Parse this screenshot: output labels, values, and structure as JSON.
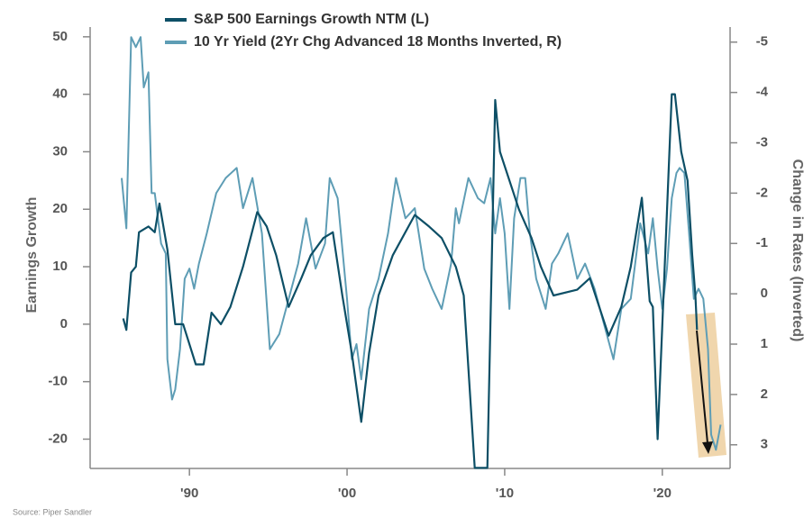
{
  "chart_data": {
    "type": "line",
    "y_label": "Earnings Growth",
    "y2_label": "Change in Rates (Inverted)",
    "source": "Source: Piper Sandler",
    "xlim": [
      1983.7,
      2024.3
    ],
    "xticks": [
      {
        "value": 1990,
        "label": "'90"
      },
      {
        "value": 2000,
        "label": "'00"
      },
      {
        "value": 2010,
        "label": "'10"
      },
      {
        "value": 2020,
        "label": "'20"
      }
    ],
    "ylim": [
      -25.1,
      51.7
    ],
    "yticks": [
      -20,
      -10,
      0,
      10,
      20,
      30,
      40,
      50
    ],
    "y2lim": [
      3.47,
      -5.3
    ],
    "y2ticks": [
      -5,
      -4,
      -3,
      -2,
      -1,
      0,
      1,
      2,
      3
    ],
    "series": [
      {
        "name": "S&P 500 Earnings Growth NTM (L)",
        "color": "#0d4f66",
        "axis": "y",
        "x": [
          1985.8,
          1986.0,
          1986.3,
          1986.6,
          1986.8,
          1987.4,
          1987.8,
          1988.1,
          1988.6,
          1989.1,
          1989.6,
          1990.4,
          1990.9,
          1991.4,
          1992.0,
          1992.6,
          1993.4,
          1994.3,
          1994.9,
          1995.5,
          1996.3,
          1997.1,
          1997.7,
          1998.5,
          1999.1,
          1999.7,
          2000.3,
          2000.9,
          2001.4,
          2002.0,
          2002.9,
          2004.3,
          2005.2,
          2006.0,
          2006.9,
          2007.4,
          2008.1,
          2008.9,
          2009.4,
          2009.7,
          2010.9,
          2011.7,
          2012.3,
          2013.1,
          2014.6,
          2015.4,
          2016.6,
          2017.4,
          2018.0,
          2018.7,
          2019.2,
          2019.4,
          2019.7,
          2020.6,
          2020.8,
          2021.2,
          2021.6,
          2021.9,
          2022.1,
          2022.2
        ],
        "values": [
          1,
          -1,
          9,
          10,
          16,
          17,
          16,
          21,
          13,
          0,
          0,
          -7,
          -7,
          2,
          0,
          3,
          10,
          19.5,
          17,
          12,
          3,
          8,
          12,
          15,
          16,
          5,
          -5,
          -17,
          -5,
          5,
          12,
          19,
          17,
          15,
          10,
          5,
          -25,
          -25,
          39,
          30,
          20,
          15,
          10,
          5,
          6,
          8,
          -2,
          3,
          10,
          22,
          4,
          3,
          -20,
          40,
          40,
          30,
          25,
          12,
          5,
          -1
        ]
      },
      {
        "name": "10 Yr Yield (2Yr Chg Advanced 18 Months Inverted, R)",
        "color": "#5e9db5",
        "axis": "y2",
        "x": [
          1985.7,
          1986.0,
          1986.3,
          1986.6,
          1986.9,
          1987.1,
          1987.4,
          1987.6,
          1987.8,
          1988.2,
          1988.5,
          1988.6,
          1988.9,
          1989.1,
          1989.4,
          1989.7,
          1990.0,
          1990.3,
          1990.6,
          1991.1,
          1991.7,
          1992.3,
          1993.0,
          1993.4,
          1994.0,
          1994.6,
          1995.1,
          1995.7,
          1996.3,
          1996.9,
          1997.4,
          1998.0,
          1998.6,
          1998.9,
          1999.4,
          2000.0,
          2000.3,
          2000.6,
          2000.9,
          2001.4,
          2002.0,
          2002.6,
          2003.1,
          2003.7,
          2004.3,
          2004.9,
          2005.4,
          2006.0,
          2006.6,
          2006.9,
          2007.1,
          2007.7,
          2008.3,
          2008.7,
          2009.1,
          2009.4,
          2009.7,
          2010.0,
          2010.3,
          2010.6,
          2011.0,
          2011.3,
          2011.6,
          2012.0,
          2012.6,
          2013.0,
          2013.4,
          2014.0,
          2014.6,
          2015.1,
          2015.7,
          2016.3,
          2016.9,
          2017.4,
          2018.0,
          2018.6,
          2019.1,
          2019.4,
          2019.7,
          2020.0,
          2020.3,
          2020.6,
          2020.9,
          2021.1,
          2021.4,
          2021.7,
          2022.0,
          2022.3,
          2022.6,
          2022.9,
          2023.1,
          2023.4,
          2023.7
        ],
        "values": [
          -2.3,
          -1.3,
          -5.1,
          -4.9,
          -5.1,
          -4.1,
          -4.4,
          -2.0,
          -2.0,
          -1.0,
          -0.8,
          1.3,
          2.1,
          1.9,
          1.1,
          -0.3,
          -0.5,
          -0.1,
          -0.6,
          -1.2,
          -2.0,
          -2.3,
          -2.5,
          -1.7,
          -2.3,
          -1.2,
          1.1,
          0.8,
          0.1,
          -0.6,
          -1.5,
          -0.5,
          -1.0,
          -2.3,
          -1.9,
          0.1,
          1.3,
          1.0,
          1.7,
          0.3,
          -0.3,
          -1.2,
          -2.3,
          -1.5,
          -1.7,
          -0.5,
          -0.1,
          0.3,
          -0.6,
          -1.7,
          -1.4,
          -2.3,
          -1.9,
          -1.8,
          -2.3,
          -1.2,
          -1.9,
          -1.2,
          0.3,
          -1.5,
          -2.3,
          -2.3,
          -1.2,
          -0.3,
          0.3,
          -0.6,
          -0.8,
          -1.2,
          -0.3,
          -0.6,
          -0.1,
          0.6,
          1.3,
          0.3,
          0.1,
          -1.4,
          -0.8,
          -1.5,
          -0.5,
          0.3,
          -0.5,
          -1.9,
          -2.4,
          -2.5,
          -2.4,
          -1.2,
          0.1,
          -0.1,
          0.1,
          1.1,
          2.8,
          3.1,
          2.6
        ]
      }
    ]
  }
}
